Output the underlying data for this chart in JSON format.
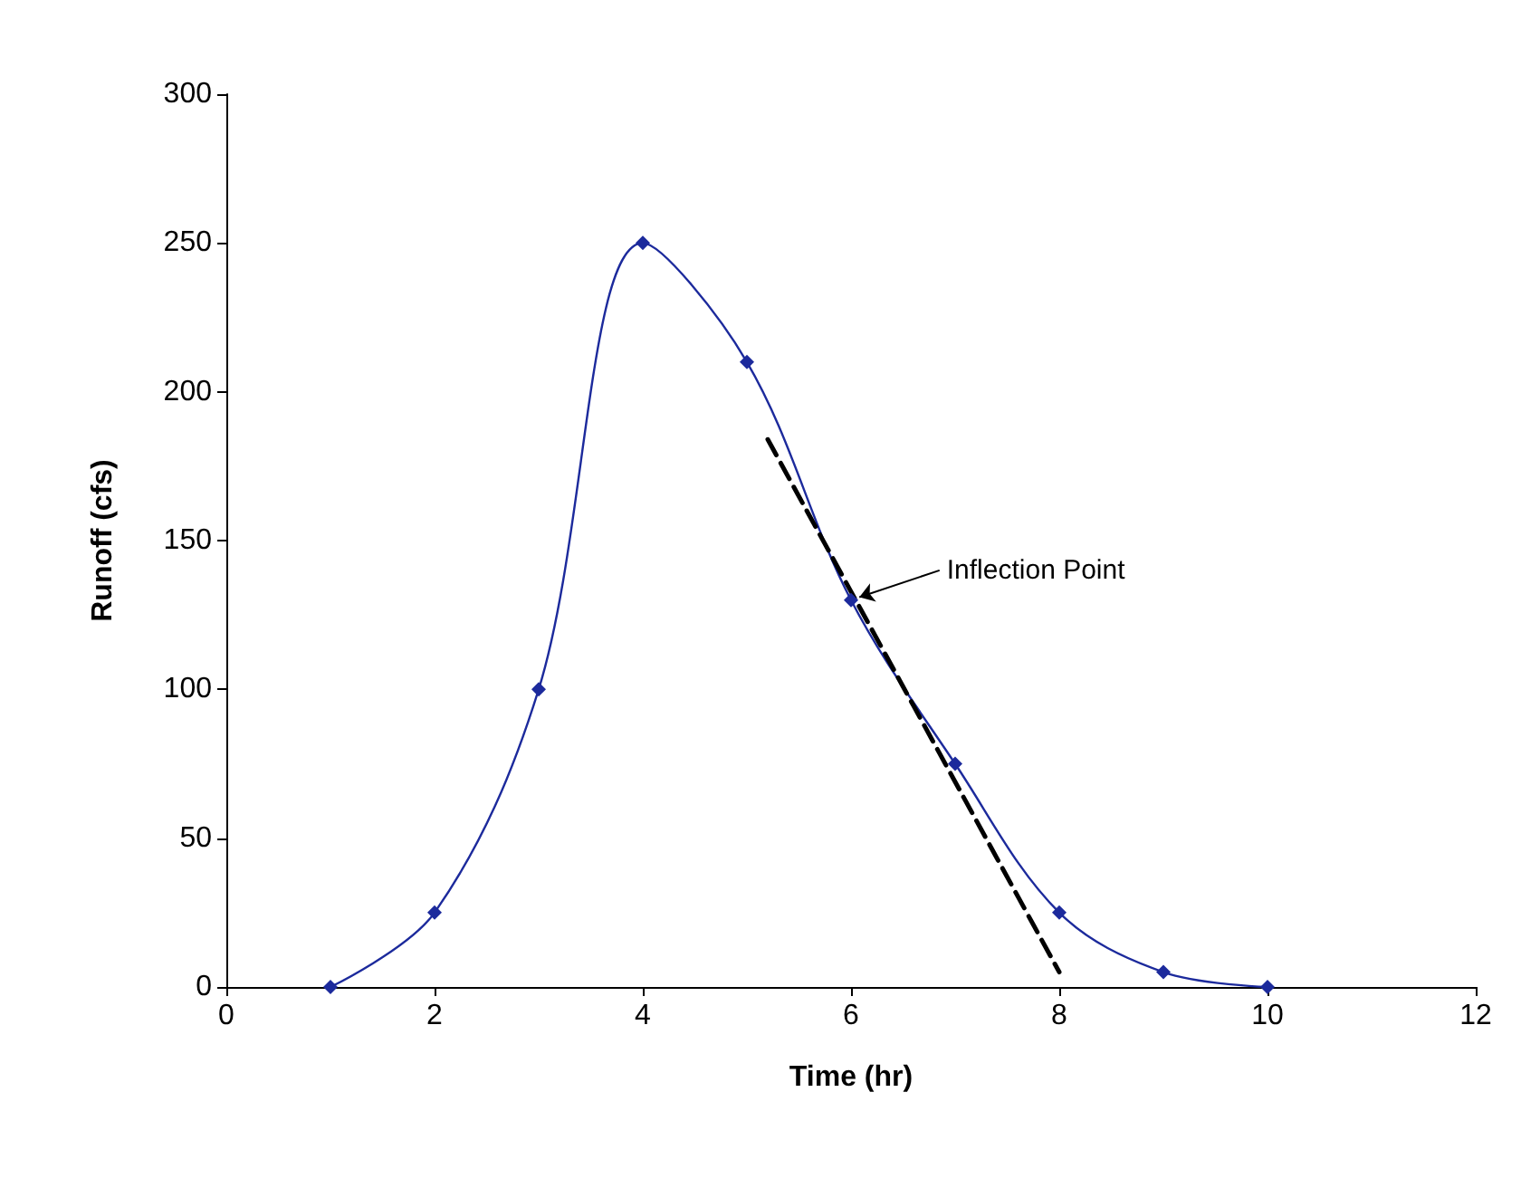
{
  "chart_data": {
    "type": "line",
    "xlabel": "Time (hr)",
    "ylabel": "Runoff (cfs)",
    "x": [
      1,
      2,
      3,
      4,
      5,
      6,
      7,
      8,
      9,
      10
    ],
    "series": [
      {
        "color": "#1c2a9c",
        "values": [
          0,
          25,
          100,
          250,
          210,
          130,
          75,
          25,
          5,
          0
        ],
        "marker": "diamond",
        "line_style": "solid"
      },
      {
        "type": "line",
        "color": "#000000",
        "x": [
          5.2,
          8.0
        ],
        "values": [
          184,
          5
        ],
        "marker": "none",
        "line_style": "dashed"
      }
    ],
    "annotations": [
      {
        "text": "Inflection Point",
        "x": 6,
        "y": 130
      }
    ],
    "xlim": [
      0,
      12
    ],
    "xticks": [
      0,
      2,
      4,
      6,
      8,
      10,
      12
    ],
    "ylim": [
      0,
      300
    ],
    "yticks": [
      0,
      50,
      100,
      150,
      200,
      250,
      300
    ],
    "grid": false
  }
}
